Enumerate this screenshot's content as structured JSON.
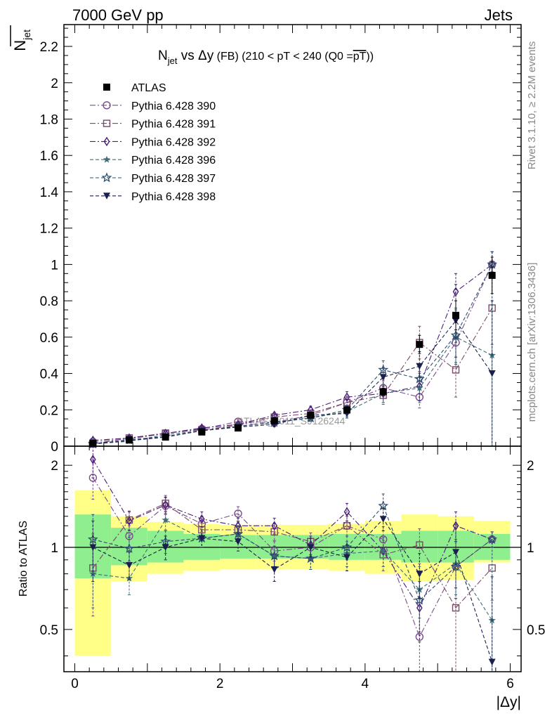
{
  "header": {
    "left": "7000 GeV pp",
    "right": "Jets"
  },
  "side_labels": {
    "rivet": "Rivet 3.1.10, ≥ 2.2M events",
    "mcplots": "mcplots.cern.ch [arXiv:1306.3436]"
  },
  "watermark": "ATLAS_2011_S9126244",
  "chart_data": [
    {
      "type": "scatter",
      "title_main": "N",
      "title_main_sub": "jet",
      "title_vs": " vs ",
      "title_var": "Δy",
      "title_rest": " (FB) (210 < pT < 240 (Q0 =",
      "title_over": "pT",
      "title_close": "))",
      "ylabel_base": "N",
      "ylabel_sub": "jet",
      "xlim": [
        -0.15,
        6.15
      ],
      "ylim": [
        0,
        2.32
      ],
      "yticks": [
        0,
        0.2,
        0.4,
        0.6,
        0.8,
        1,
        1.2,
        1.4,
        1.6,
        1.8,
        2,
        2.2
      ],
      "ytick_labels": [
        "0",
        "0.2",
        "0.4",
        "0.6",
        "0.8",
        "1",
        "1.2",
        "1.4",
        "1.6",
        "1.8",
        "2",
        "2.2"
      ],
      "x": [
        0.25,
        0.75,
        1.25,
        1.75,
        2.25,
        2.75,
        3.25,
        3.75,
        4.25,
        4.75,
        5.25,
        5.75
      ],
      "series": [
        {
          "name": "ATLAS",
          "color": "#000000",
          "marker": "square-filled",
          "values": [
            0.015,
            0.035,
            0.05,
            0.078,
            0.1,
            0.14,
            0.17,
            0.2,
            0.3,
            0.56,
            0.72,
            0.94
          ],
          "errors": [
            0.002,
            0.003,
            0.004,
            0.005,
            0.006,
            0.008,
            0.01,
            0.015,
            0.02,
            0.05,
            0.08,
            0.1
          ]
        },
        {
          "name": "Pythia 6.428 390",
          "color": "#7b4a8c",
          "marker": "circle-open",
          "dash": "8,3,2,3",
          "values": [
            0.025,
            0.04,
            0.07,
            0.095,
            0.135,
            0.13,
            0.17,
            0.24,
            0.32,
            0.27,
            0.57,
            1.0
          ],
          "errors": [
            0.005,
            0.006,
            0.008,
            0.01,
            0.012,
            0.015,
            0.02,
            0.03,
            0.04,
            0.06,
            0.12,
            0.07
          ]
        },
        {
          "name": "Pythia 6.428 391",
          "color": "#7a4a68",
          "marker": "square-open",
          "dash": "8,3,2,3",
          "values": [
            0.012,
            0.045,
            0.072,
            0.09,
            0.115,
            0.16,
            0.18,
            0.24,
            0.28,
            0.57,
            0.42,
            0.76
          ],
          "errors": [
            0.004,
            0.006,
            0.008,
            0.01,
            0.012,
            0.015,
            0.02,
            0.03,
            0.05,
            0.09,
            0.15,
            0.2
          ]
        },
        {
          "name": "Pythia 6.428 392",
          "color": "#4a1e7a",
          "marker": "diamond-open",
          "dash": "8,3,2,3",
          "values": [
            0.032,
            0.045,
            0.07,
            0.1,
            0.12,
            0.17,
            0.2,
            0.27,
            0.29,
            0.33,
            0.85,
            1.0
          ],
          "errors": [
            0.005,
            0.006,
            0.008,
            0.01,
            0.012,
            0.015,
            0.02,
            0.03,
            0.05,
            0.08,
            0.1,
            0.07
          ]
        },
        {
          "name": "Pythia 6.428 396",
          "color": "#3f6e78",
          "marker": "star-filled",
          "dash": "5,3",
          "values": [
            0.012,
            0.027,
            0.063,
            0.085,
            0.11,
            0.13,
            0.155,
            0.19,
            0.29,
            0.32,
            0.6,
            0.5
          ],
          "errors": [
            0.003,
            0.005,
            0.007,
            0.009,
            0.011,
            0.014,
            0.018,
            0.025,
            0.05,
            0.08,
            0.15,
            0.5
          ]
        },
        {
          "name": "Pythia 6.428 397",
          "color": "#2e4e6e",
          "marker": "star-open",
          "dash": "5,3",
          "values": [
            0.012,
            0.035,
            0.053,
            0.085,
            0.11,
            0.13,
            0.155,
            0.2,
            0.42,
            0.37,
            0.61,
            1.0
          ],
          "errors": [
            0.003,
            0.005,
            0.007,
            0.009,
            0.011,
            0.014,
            0.018,
            0.025,
            0.05,
            0.08,
            0.15,
            0.07
          ]
        },
        {
          "name": "Pythia 6.428 398",
          "color": "#1a1f4e",
          "marker": "triangle-down-filled",
          "dash": "5,3",
          "values": [
            0.015,
            0.03,
            0.05,
            0.085,
            0.105,
            0.12,
            0.17,
            0.18,
            0.38,
            0.44,
            0.69,
            0.4
          ],
          "errors": [
            0.003,
            0.005,
            0.007,
            0.009,
            0.011,
            0.014,
            0.018,
            0.025,
            0.05,
            0.08,
            0.2,
            0.4
          ]
        }
      ]
    },
    {
      "type": "scatter",
      "ylabel": "Ratio to ATLAS",
      "xlabel": "|Δy|",
      "xlim": [
        -0.15,
        6.15
      ],
      "ylim": [
        0.35,
        2.35
      ],
      "log_y": true,
      "yticks": [
        0.5,
        1,
        2
      ],
      "ytick_labels": [
        "0.5",
        "1",
        "2"
      ],
      "xticks": [
        0,
        2,
        4,
        6
      ],
      "xtick_labels": [
        "0",
        "2",
        "4",
        "6"
      ],
      "x": [
        0.25,
        0.75,
        1.25,
        1.75,
        2.25,
        2.75,
        3.25,
        3.75,
        4.25,
        4.75,
        5.25,
        5.75
      ],
      "band_inner": [
        {
          "lo": 0.77,
          "hi": 1.32
        },
        {
          "lo": 0.86,
          "hi": 1.18
        },
        {
          "lo": 0.88,
          "hi": 1.15
        },
        {
          "lo": 0.9,
          "hi": 1.12
        },
        {
          "lo": 0.91,
          "hi": 1.11
        },
        {
          "lo": 0.91,
          "hi": 1.11
        },
        {
          "lo": 0.91,
          "hi": 1.11
        },
        {
          "lo": 0.9,
          "hi": 1.12
        },
        {
          "lo": 0.9,
          "hi": 1.12
        },
        {
          "lo": 0.88,
          "hi": 1.15
        },
        {
          "lo": 0.88,
          "hi": 1.15
        },
        {
          "lo": 0.9,
          "hi": 1.12
        }
      ],
      "band_outer": [
        {
          "lo": 0.4,
          "hi": 1.62
        },
        {
          "lo": 0.75,
          "hi": 1.3
        },
        {
          "lo": 0.8,
          "hi": 1.24
        },
        {
          "lo": 0.82,
          "hi": 1.22
        },
        {
          "lo": 0.83,
          "hi": 1.21
        },
        {
          "lo": 0.83,
          "hi": 1.21
        },
        {
          "lo": 0.83,
          "hi": 1.21
        },
        {
          "lo": 0.82,
          "hi": 1.22
        },
        {
          "lo": 0.8,
          "hi": 1.25
        },
        {
          "lo": 0.75,
          "hi": 1.32
        },
        {
          "lo": 0.76,
          "hi": 1.3
        },
        {
          "lo": 0.88,
          "hi": 1.25
        }
      ],
      "series": [
        {
          "name": "Pythia 6.428 390",
          "color": "#7b4a8c",
          "marker": "circle-open",
          "dash": "8,3,2,3",
          "values": [
            1.8,
            1.1,
            1.42,
            1.22,
            1.33,
            0.97,
            1.0,
            1.2,
            1.07,
            0.47,
            0.85,
            1.07
          ],
          "errors": [
            0.3,
            0.1,
            0.1,
            0.08,
            0.08,
            0.08,
            0.08,
            0.1,
            0.12,
            0.12,
            0.2,
            0.07
          ]
        },
        {
          "name": "Pythia 6.428 391",
          "color": "#7a4a68",
          "marker": "square-open",
          "dash": "8,3,2,3",
          "values": [
            0.84,
            1.26,
            1.45,
            1.16,
            1.16,
            1.14,
            1.05,
            1.2,
            0.94,
            1.02,
            0.6,
            0.84
          ],
          "errors": [
            0.28,
            0.1,
            0.1,
            0.08,
            0.08,
            0.08,
            0.08,
            0.1,
            0.12,
            0.15,
            0.25,
            0.2
          ]
        },
        {
          "name": "Pythia 6.428 392",
          "color": "#4a1e7a",
          "marker": "diamond-open",
          "dash": "8,3,2,3",
          "values": [
            2.1,
            1.25,
            1.43,
            1.27,
            1.2,
            1.2,
            1.02,
            1.35,
            0.97,
            0.6,
            1.2,
            1.07
          ],
          "errors": [
            0.3,
            0.1,
            0.1,
            0.08,
            0.08,
            0.08,
            0.08,
            0.1,
            0.12,
            0.15,
            0.15,
            0.07
          ]
        },
        {
          "name": "Pythia 6.428 396",
          "color": "#3f6e78",
          "marker": "star-filled",
          "dash": "5,3",
          "values": [
            0.8,
            0.77,
            1.26,
            1.08,
            1.12,
            0.93,
            0.91,
            0.95,
            0.97,
            0.7,
            0.87,
            0.54
          ],
          "errors": [
            0.2,
            0.1,
            0.1,
            0.08,
            0.08,
            0.08,
            0.08,
            0.1,
            0.12,
            0.15,
            0.2,
            0.5
          ]
        },
        {
          "name": "Pythia 6.428 397",
          "color": "#2e4e6e",
          "marker": "star-open",
          "dash": "5,3",
          "values": [
            1.07,
            0.99,
            1.05,
            1.08,
            1.12,
            0.93,
            0.91,
            1.0,
            1.42,
            0.64,
            0.85,
            1.07
          ],
          "errors": [
            0.25,
            0.1,
            0.1,
            0.08,
            0.08,
            0.08,
            0.08,
            0.1,
            0.15,
            0.15,
            0.2,
            0.07
          ]
        },
        {
          "name": "Pythia 6.428 398",
          "color": "#1a1f4e",
          "marker": "triangle-down-filled",
          "dash": "5,3",
          "values": [
            1.0,
            0.86,
            1.0,
            1.08,
            1.05,
            0.83,
            1.0,
            0.92,
            1.27,
            0.8,
            0.96,
            0.38
          ],
          "errors": [
            0.25,
            0.1,
            0.1,
            0.08,
            0.08,
            0.08,
            0.08,
            0.1,
            0.12,
            0.15,
            0.25,
            0.4
          ]
        }
      ]
    }
  ]
}
